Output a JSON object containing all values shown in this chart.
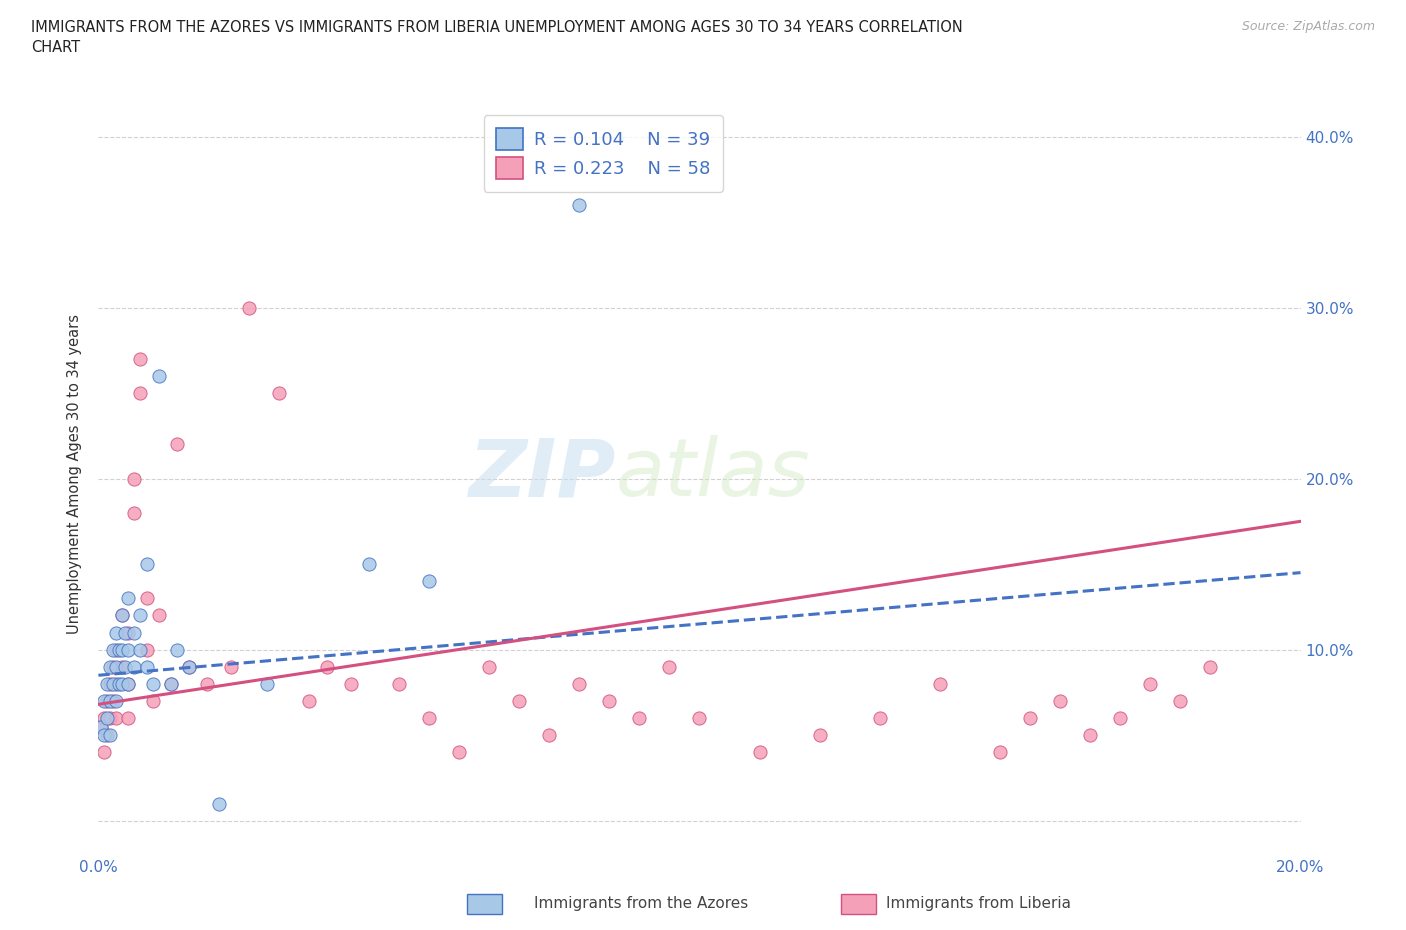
{
  "title": "IMMIGRANTS FROM THE AZORES VS IMMIGRANTS FROM LIBERIA UNEMPLOYMENT AMONG AGES 30 TO 34 YEARS CORRELATION\nCHART",
  "source_text": "Source: ZipAtlas.com",
  "ylabel": "Unemployment Among Ages 30 to 34 years",
  "xmin": 0.0,
  "xmax": 0.2,
  "ymin": -0.015,
  "ymax": 0.42,
  "yticks": [
    0.0,
    0.1,
    0.2,
    0.3,
    0.4
  ],
  "right_ytick_labels": [
    "",
    "10.0%",
    "20.0%",
    "30.0%",
    "40.0%"
  ],
  "watermark_zip": "ZIP",
  "watermark_atlas": "atlas",
  "color_azores": "#a8c8e8",
  "color_liberia": "#f4a0b8",
  "color_azores_line": "#4472c4",
  "color_liberia_line": "#d45080",
  "color_text_blue": "#4472c4",
  "azores_x": [
    0.0005,
    0.001,
    0.001,
    0.0015,
    0.0015,
    0.002,
    0.002,
    0.002,
    0.0025,
    0.0025,
    0.003,
    0.003,
    0.003,
    0.0035,
    0.0035,
    0.004,
    0.004,
    0.004,
    0.0045,
    0.0045,
    0.005,
    0.005,
    0.005,
    0.006,
    0.006,
    0.007,
    0.007,
    0.008,
    0.008,
    0.009,
    0.01,
    0.012,
    0.013,
    0.015,
    0.02,
    0.028,
    0.045,
    0.055,
    0.08
  ],
  "azores_y": [
    0.055,
    0.07,
    0.05,
    0.08,
    0.06,
    0.09,
    0.07,
    0.05,
    0.1,
    0.08,
    0.11,
    0.09,
    0.07,
    0.1,
    0.08,
    0.12,
    0.1,
    0.08,
    0.11,
    0.09,
    0.13,
    0.1,
    0.08,
    0.11,
    0.09,
    0.1,
    0.12,
    0.15,
    0.09,
    0.08,
    0.26,
    0.08,
    0.1,
    0.09,
    0.01,
    0.08,
    0.15,
    0.14,
    0.36
  ],
  "liberia_x": [
    0.0005,
    0.001,
    0.001,
    0.0015,
    0.0015,
    0.002,
    0.002,
    0.0025,
    0.0025,
    0.003,
    0.003,
    0.003,
    0.004,
    0.004,
    0.005,
    0.005,
    0.005,
    0.006,
    0.006,
    0.007,
    0.007,
    0.008,
    0.008,
    0.009,
    0.01,
    0.012,
    0.013,
    0.015,
    0.018,
    0.022,
    0.025,
    0.03,
    0.035,
    0.038,
    0.042,
    0.05,
    0.055,
    0.06,
    0.065,
    0.07,
    0.075,
    0.08,
    0.085,
    0.09,
    0.095,
    0.1,
    0.11,
    0.12,
    0.13,
    0.14,
    0.15,
    0.155,
    0.16,
    0.165,
    0.17,
    0.175,
    0.18,
    0.185
  ],
  "liberia_y": [
    0.055,
    0.06,
    0.04,
    0.07,
    0.05,
    0.08,
    0.06,
    0.09,
    0.07,
    0.1,
    0.08,
    0.06,
    0.12,
    0.09,
    0.11,
    0.08,
    0.06,
    0.2,
    0.18,
    0.27,
    0.25,
    0.13,
    0.1,
    0.07,
    0.12,
    0.08,
    0.22,
    0.09,
    0.08,
    0.09,
    0.3,
    0.25,
    0.07,
    0.09,
    0.08,
    0.08,
    0.06,
    0.04,
    0.09,
    0.07,
    0.05,
    0.08,
    0.07,
    0.06,
    0.09,
    0.06,
    0.04,
    0.05,
    0.06,
    0.08,
    0.04,
    0.06,
    0.07,
    0.05,
    0.06,
    0.08,
    0.07,
    0.09
  ],
  "azores_trend_x": [
    0.0,
    0.2
  ],
  "azores_trend_y": [
    0.085,
    0.145
  ],
  "liberia_trend_x": [
    0.0,
    0.2
  ],
  "liberia_trend_y": [
    0.068,
    0.175
  ]
}
